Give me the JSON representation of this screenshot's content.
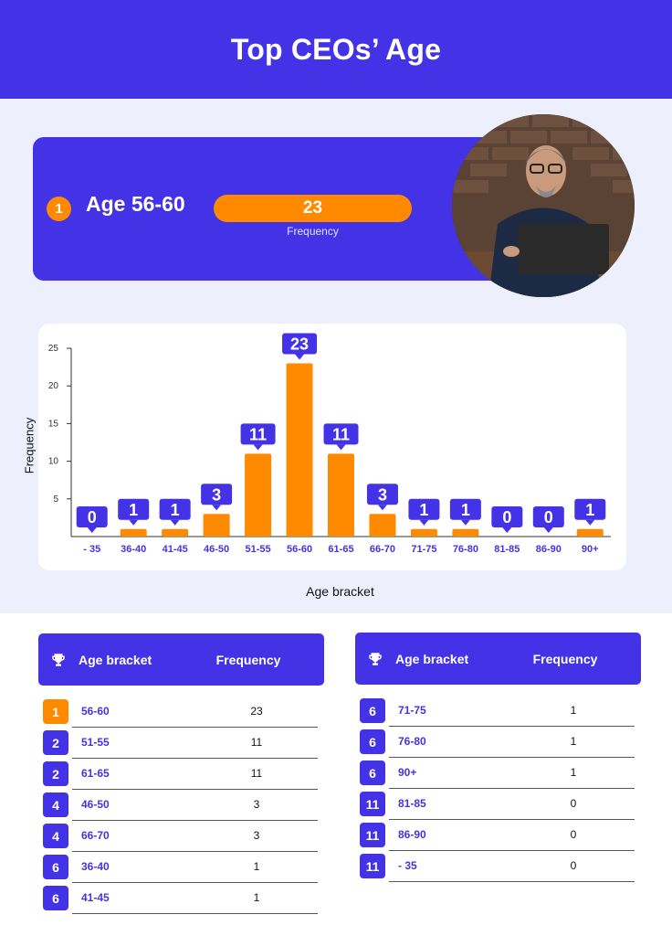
{
  "title": "Top CEOs’ Age",
  "highlight": {
    "rank": "1",
    "label": "Age 56-60",
    "value": "23",
    "sublabel": "Frequency"
  },
  "chart_data": {
    "type": "bar",
    "xlabel": "Age bracket",
    "ylabel": "Frequency",
    "ylim": [
      0,
      25
    ],
    "yticks": [
      5,
      10,
      15,
      20,
      25
    ],
    "categories": [
      "- 35",
      "36-40",
      "41-45",
      "46-50",
      "51-55",
      "56-60",
      "61-65",
      "66-70",
      "71-75",
      "76-80",
      "81-85",
      "86-90",
      "90+"
    ],
    "values": [
      0,
      1,
      1,
      3,
      11,
      23,
      11,
      3,
      1,
      1,
      0,
      0,
      1
    ],
    "bar_color": "#ff8a00",
    "label_color": "#4433e6",
    "grid": false
  },
  "tables": {
    "header_bracket": "Age bracket",
    "header_frequency": "Frequency",
    "left": [
      {
        "rank": "1",
        "bracket": "56-60",
        "frequency": "23"
      },
      {
        "rank": "2",
        "bracket": "51-55",
        "frequency": "11"
      },
      {
        "rank": "2",
        "bracket": "61-65",
        "frequency": "11"
      },
      {
        "rank": "4",
        "bracket": "46-50",
        "frequency": "3"
      },
      {
        "rank": "4",
        "bracket": "66-70",
        "frequency": "3"
      },
      {
        "rank": "6",
        "bracket": "36-40",
        "frequency": "1"
      },
      {
        "rank": "6",
        "bracket": "41-45",
        "frequency": "1"
      }
    ],
    "right": [
      {
        "rank": "6",
        "bracket": "71-75",
        "frequency": "1"
      },
      {
        "rank": "6",
        "bracket": "76-80",
        "frequency": "1"
      },
      {
        "rank": "6",
        "bracket": "90+",
        "frequency": "1"
      },
      {
        "rank": "11",
        "bracket": "81-85",
        "frequency": "0"
      },
      {
        "rank": "11",
        "bracket": "86-90",
        "frequency": "0"
      },
      {
        "rank": "11",
        "bracket": "- 35",
        "frequency": "0"
      }
    ]
  },
  "colors": {
    "primary": "#4433e6",
    "accent": "#ff8a00",
    "background": "#eeeffc"
  }
}
